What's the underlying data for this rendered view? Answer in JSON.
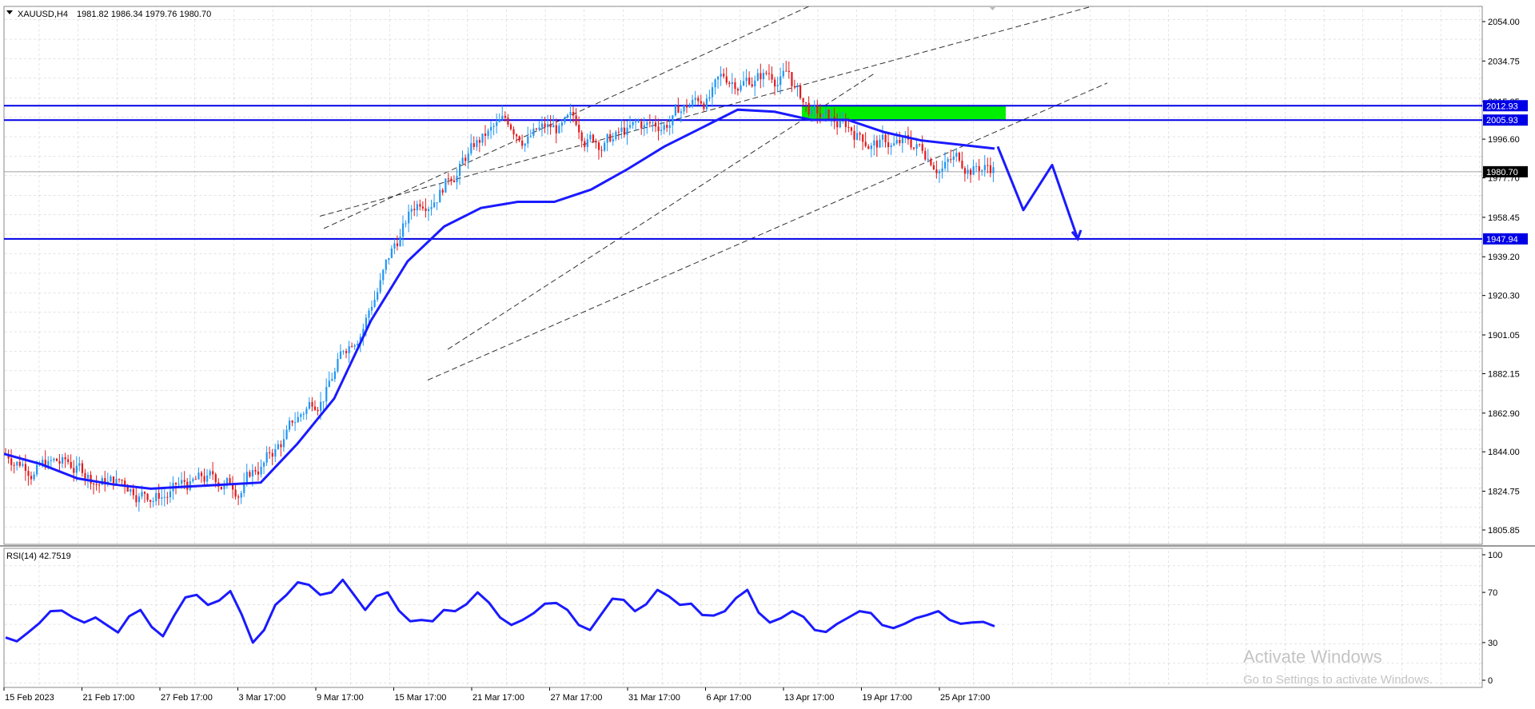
{
  "chart_header": {
    "symbol_text": "XAUUSD,H4",
    "ohlc_text": "1981.82 1986.34 1979.76 1980.70"
  },
  "rsi_header": {
    "text": "RSI(14) 42.7519"
  },
  "watermark": {
    "line1": "Activate Windows",
    "line2": "Go to Settings to activate Windows."
  },
  "colors": {
    "bull": "#2196f3",
    "bear": "#e31a1c",
    "ma": "#1a1aff",
    "hline": "#0000e6",
    "zone": "#00ee00",
    "rsi": "#1a1aff"
  },
  "icons": [
    "dropdown-arrow-icon",
    "scroll-marker-icon"
  ],
  "chart_data": [
    {
      "type": "candlestick",
      "symbol": "XAUUSD",
      "timeframe": "H4",
      "y_ticks": [
        "2054.00",
        "2034.75",
        "2015.05",
        "1996.60",
        "1977.70",
        "1958.45",
        "1939.20",
        "1920.30",
        "1901.05",
        "1882.15",
        "1862.90",
        "1844.00",
        "1824.75",
        "1805.85"
      ],
      "ylim": [
        1802,
        2057
      ],
      "x_ticks": [
        "15 Feb 2023",
        "21 Feb 17:00",
        "27 Feb 17:00",
        "3 Mar 17:00",
        "9 Mar 17:00",
        "15 Mar 17:00",
        "21 Mar 17:00",
        "27 Mar 17:00",
        "31 Mar 17:00",
        "6 Apr 17:00",
        "13 Apr 17:00",
        "19 Apr 17:00",
        "25 Apr 17:00"
      ],
      "price_levels": [
        {
          "label": "2012.93",
          "value": 2012.93
        },
        {
          "label": "2005.93",
          "value": 2005.93
        },
        {
          "label": "1947.94",
          "value": 1947.94
        }
      ],
      "current_price": {
        "label": "1980.70",
        "value": 1980.7
      },
      "resistance_zone": {
        "low": 2005.93,
        "high": 2012.93
      },
      "moving_average": [
        1843,
        1838,
        1831,
        1828,
        1826,
        1827,
        1828,
        1829,
        1848,
        1870,
        1908,
        1937,
        1954,
        1963,
        1966,
        1966,
        1972,
        1982,
        1993,
        2002,
        2011,
        2010,
        2006,
        2006,
        2000,
        1996,
        1994,
        1992
      ],
      "projection_path": [
        1993,
        1962,
        1984,
        1947.94
      ],
      "trend_channels": [
        {
          "name": "upper",
          "lines": [
            [
              1953,
              2062
            ],
            [
              1959,
              2064
            ]
          ]
        },
        {
          "name": "lower",
          "lines": [
            [
              1894,
              2029
            ],
            [
              1879,
              2024
            ]
          ]
        }
      ]
    },
    {
      "type": "line",
      "name": "RSI(14)",
      "current": 42.7519,
      "y_ticks": [
        "100",
        "70",
        "30",
        "0"
      ],
      "ylim": [
        0,
        100
      ],
      "values": [
        34,
        38,
        55,
        50,
        50,
        38,
        56,
        35,
        66,
        60,
        71,
        30,
        60,
        78,
        68,
        80,
        56,
        70,
        47,
        47,
        55,
        70,
        50,
        48,
        61,
        56,
        40,
        65,
        55,
        72,
        60,
        52,
        55,
        72,
        46,
        55,
        40,
        45,
        55,
        44,
        45,
        52,
        48,
        46,
        43
      ]
    }
  ]
}
